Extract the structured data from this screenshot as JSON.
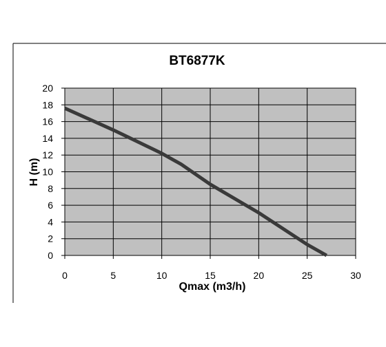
{
  "chart_data": {
    "type": "line",
    "title": "BT6877K",
    "xlabel": "Qmax (m3/h)",
    "ylabel": "H (m)",
    "xlim": [
      0,
      30
    ],
    "ylim": [
      0,
      20
    ],
    "x_ticks": [
      "0",
      "5",
      "10",
      "15",
      "20",
      "25",
      "30"
    ],
    "y_ticks": [
      "0",
      "2",
      "4",
      "6",
      "8",
      "10",
      "12",
      "14",
      "16",
      "18",
      "20"
    ],
    "grid": true,
    "legend": "none",
    "series": [
      {
        "x": [
          0,
          5,
          10,
          12,
          15,
          20,
          25,
          27
        ],
        "y": [
          17.6,
          15.0,
          12.2,
          10.9,
          8.5,
          5.1,
          1.3,
          0
        ],
        "color": "#3a3a3a"
      }
    ],
    "plot_background": "#c0c0c0",
    "frame_color": "#000000"
  }
}
